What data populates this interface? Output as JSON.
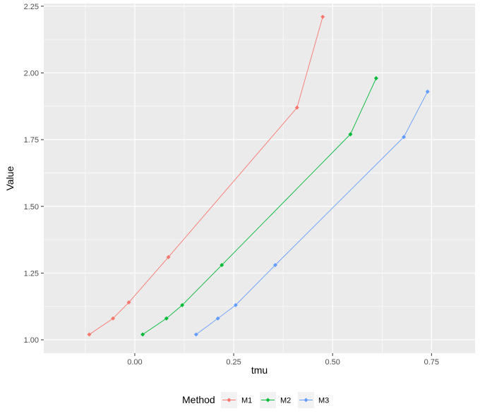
{
  "chart_data": {
    "type": "line",
    "title": "",
    "xlabel": "tmu",
    "ylabel": "Value",
    "xlim": [
      -0.23,
      0.86
    ],
    "ylim": [
      0.95,
      2.26
    ],
    "x_ticks": [
      0.0,
      0.25,
      0.5,
      0.75
    ],
    "x_tick_labels": [
      "0.00",
      "0.25",
      "0.50",
      "0.75"
    ],
    "y_ticks": [
      1.0,
      1.25,
      1.5,
      1.75,
      2.0,
      2.25
    ],
    "y_tick_labels": [
      "1.00",
      "1.25",
      "1.50",
      "1.75",
      "2.00",
      "2.25"
    ],
    "grid": true,
    "legend": {
      "title": "Method",
      "position": "bottom",
      "entries": [
        "M1",
        "M2",
        "M3"
      ]
    },
    "series": [
      {
        "name": "M1",
        "color": "#F8766D",
        "x": [
          -0.115,
          -0.055,
          -0.015,
          0.085,
          0.41,
          0.475
        ],
        "y": [
          1.02,
          1.08,
          1.14,
          1.31,
          1.87,
          2.21
        ]
      },
      {
        "name": "M2",
        "color": "#00BA38",
        "x": [
          0.02,
          0.08,
          0.12,
          0.22,
          0.545,
          0.61
        ],
        "y": [
          1.02,
          1.08,
          1.13,
          1.28,
          1.77,
          1.98
        ]
      },
      {
        "name": "M3",
        "color": "#619CFF",
        "x": [
          0.155,
          0.21,
          0.255,
          0.355,
          0.68,
          0.74
        ],
        "y": [
          1.02,
          1.08,
          1.13,
          1.28,
          1.76,
          1.93
        ]
      }
    ]
  }
}
